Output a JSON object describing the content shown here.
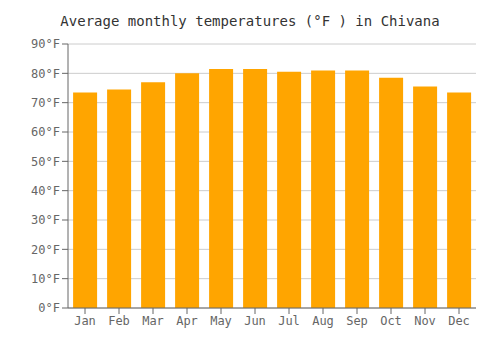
{
  "chart_data": {
    "type": "bar",
    "title": "Average monthly temperatures (°F ) in Chivana",
    "categories": [
      "Jan",
      "Feb",
      "Mar",
      "Apr",
      "May",
      "Jun",
      "Jul",
      "Aug",
      "Sep",
      "Oct",
      "Nov",
      "Dec"
    ],
    "values": [
      73.5,
      74.5,
      77.0,
      80.0,
      81.5,
      81.5,
      80.5,
      81.0,
      81.0,
      78.5,
      75.5,
      73.5
    ],
    "color": "#FFA500",
    "ylim": [
      0,
      90
    ],
    "yticks": [
      {
        "value": 0,
        "label": "0°F"
      },
      {
        "value": 10,
        "label": "10°F"
      },
      {
        "value": 20,
        "label": "20°F"
      },
      {
        "value": 30,
        "label": "30°F"
      },
      {
        "value": 40,
        "label": "40°F"
      },
      {
        "value": 50,
        "label": "50°F"
      },
      {
        "value": 60,
        "label": "60°F"
      },
      {
        "value": 70,
        "label": "70°F"
      },
      {
        "value": 80,
        "label": "80°F"
      },
      {
        "value": 90,
        "label": "90°F"
      }
    ],
    "grid": true
  }
}
